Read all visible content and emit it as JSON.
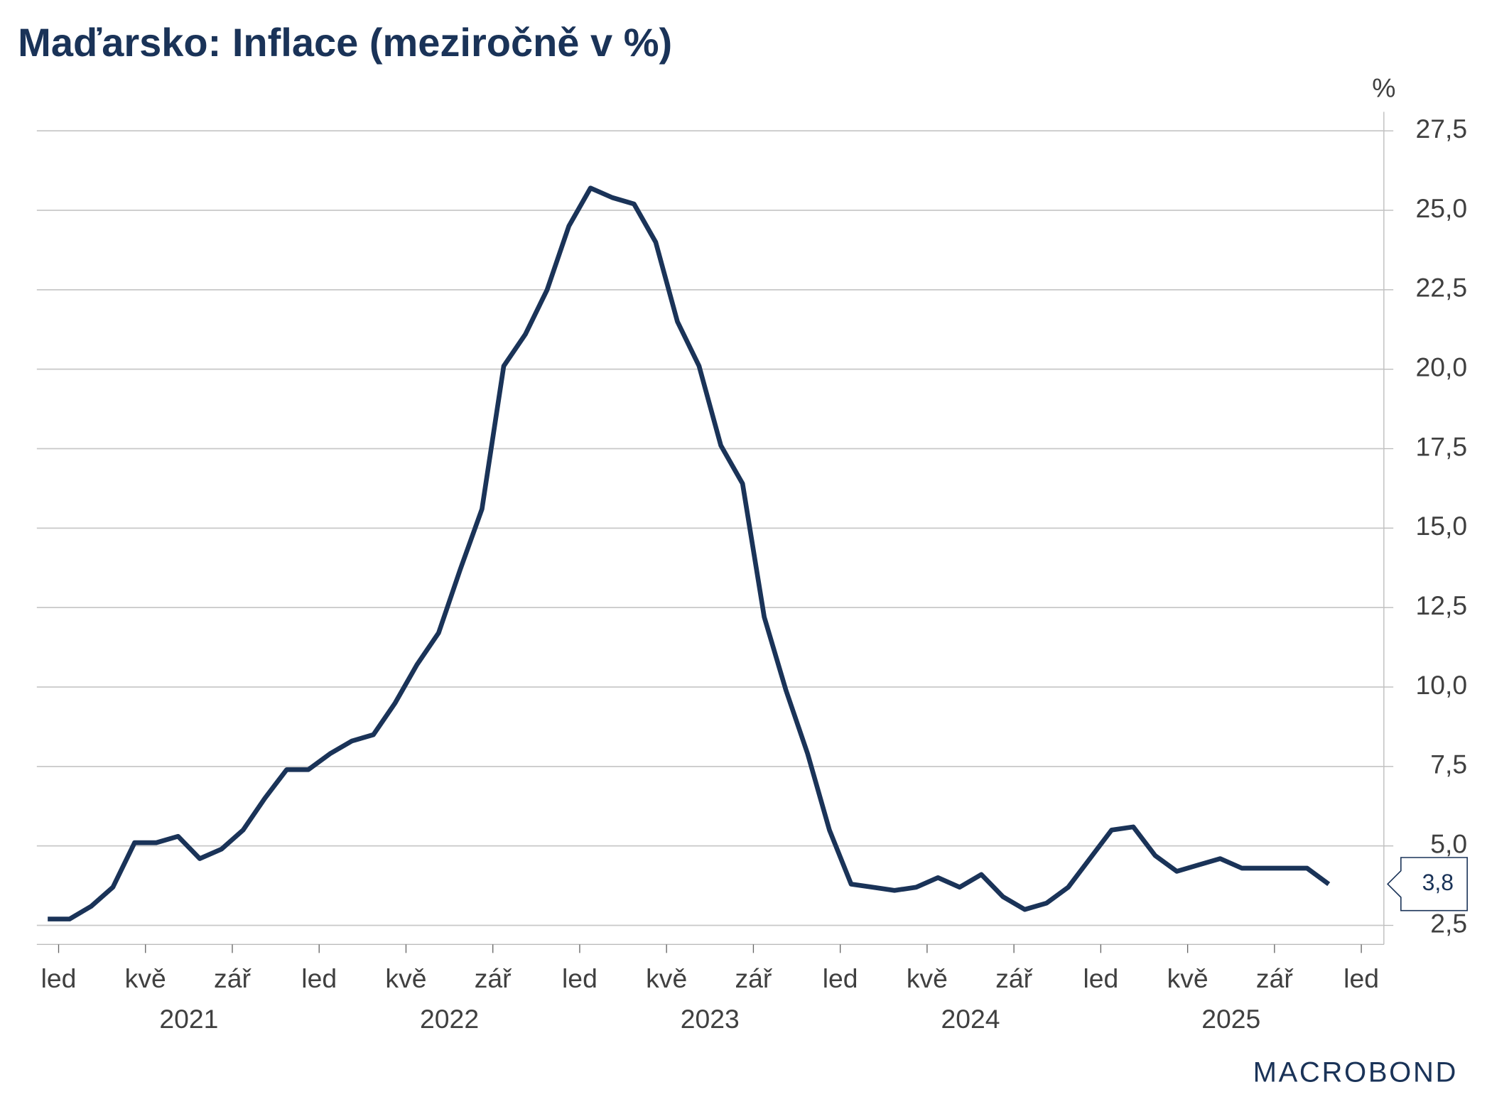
{
  "chart_data": {
    "type": "line",
    "title": "Maďarsko: Inflace (meziročně v %)",
    "y_label": "%",
    "brand": "MACROBOND",
    "x": [
      "2020-12",
      "2021-01",
      "2021-02",
      "2021-03",
      "2021-04",
      "2021-05",
      "2021-06",
      "2021-07",
      "2021-08",
      "2021-09",
      "2021-10",
      "2021-11",
      "2021-12",
      "2022-01",
      "2022-02",
      "2022-03",
      "2022-04",
      "2022-05",
      "2022-06",
      "2022-07",
      "2022-08",
      "2022-09",
      "2022-10",
      "2022-11",
      "2022-12",
      "2023-01",
      "2023-02",
      "2023-03",
      "2023-04",
      "2023-05",
      "2023-06",
      "2023-07",
      "2023-08",
      "2023-09",
      "2023-10",
      "2023-11",
      "2023-12",
      "2024-01",
      "2024-02",
      "2024-03",
      "2024-04",
      "2024-05",
      "2024-06",
      "2024-07",
      "2024-08",
      "2024-09",
      "2024-10",
      "2024-11",
      "2024-12",
      "2025-01",
      "2025-02",
      "2025-03",
      "2025-04",
      "2025-05",
      "2025-06",
      "2025-07",
      "2025-08",
      "2025-09",
      "2025-10",
      "2025-11"
    ],
    "series": [
      {
        "name": "Inflace",
        "color": "#1a3358",
        "values": [
          2.7,
          2.7,
          3.1,
          3.7,
          5.1,
          5.1,
          5.3,
          4.6,
          4.9,
          5.5,
          6.5,
          7.4,
          7.4,
          7.9,
          8.3,
          8.5,
          9.5,
          10.7,
          11.7,
          13.7,
          15.6,
          20.1,
          21.1,
          22.5,
          24.5,
          25.7,
          25.4,
          25.2,
          24.0,
          21.5,
          20.1,
          17.6,
          16.4,
          12.2,
          9.9,
          7.9,
          5.5,
          3.8,
          3.7,
          3.6,
          3.7,
          4.0,
          3.7,
          4.1,
          3.4,
          3.0,
          3.2,
          3.7,
          4.6,
          5.5,
          5.6,
          4.7,
          4.2,
          4.4,
          4.6,
          4.3,
          4.3,
          4.3,
          4.3,
          3.8
        ],
        "last_label": "3,8"
      }
    ],
    "ylim": [
      1.9,
      28.1
    ],
    "yticks": [
      {
        "value": 2.5,
        "label": "2,5"
      },
      {
        "value": 5,
        "label": "5,0"
      },
      {
        "value": 7.5,
        "label": "7,5"
      },
      {
        "value": 10,
        "label": "10,0"
      },
      {
        "value": 12.5,
        "label": "12,5"
      },
      {
        "value": 15,
        "label": "15,0"
      },
      {
        "value": 17.5,
        "label": "17,5"
      },
      {
        "value": 20,
        "label": "20,0"
      },
      {
        "value": 22.5,
        "label": "22,5"
      },
      {
        "value": 25,
        "label": "25,0"
      },
      {
        "value": 27.5,
        "label": "27,5"
      }
    ],
    "xticks": [
      {
        "value": "2021-01",
        "label": "led"
      },
      {
        "value": "2021-05",
        "label": "kvě"
      },
      {
        "value": "2021-09",
        "label": "zář"
      },
      {
        "value": "2022-01",
        "label": "led"
      },
      {
        "value": "2022-05",
        "label": "kvě"
      },
      {
        "value": "2022-09",
        "label": "zář"
      },
      {
        "value": "2023-01",
        "label": "led"
      },
      {
        "value": "2023-05",
        "label": "kvě"
      },
      {
        "value": "2023-09",
        "label": "zář"
      },
      {
        "value": "2024-01",
        "label": "led"
      },
      {
        "value": "2024-05",
        "label": "kvě"
      },
      {
        "value": "2024-09",
        "label": "zář"
      },
      {
        "value": "2025-01",
        "label": "led"
      },
      {
        "value": "2025-05",
        "label": "kvě"
      },
      {
        "value": "2025-09",
        "label": "zář"
      },
      {
        "value": "2026-01",
        "label": "led"
      }
    ],
    "years": [
      "2021",
      "2022",
      "2023",
      "2024",
      "2025"
    ],
    "grid": true
  }
}
